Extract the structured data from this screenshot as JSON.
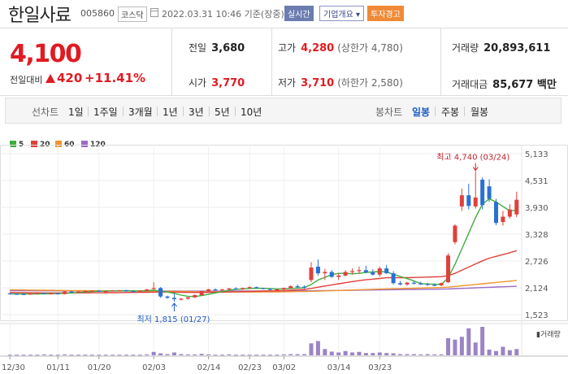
{
  "header": {
    "name": "한일사료",
    "code": "005860",
    "market": "코스닥",
    "time": "2022.03.31 10:46 기준(장중)",
    "badge_realtime": "실시간",
    "badge_company": "기업개요 ▾",
    "badge_warning": "투자경고"
  },
  "summary": {
    "price": "4,100",
    "change_label": "전일대비",
    "change_value": "420",
    "change_pct": "+11.41%",
    "prev_label": "전일",
    "prev_value": "3,680",
    "open_label": "시가",
    "open_value": "3,770",
    "high_label": "고가",
    "high_value": "4,280",
    "high_sub": "(상한가 4,780)",
    "low_label": "저가",
    "low_value": "3,710",
    "low_sub": "(하한가 2,580)",
    "vol_label": "거래량",
    "vol_value": "20,893,611",
    "amt_label": "거래대금",
    "amt_value": "85,677 백만"
  },
  "tabs": {
    "line_label": "선차트",
    "line_tabs": [
      "1일",
      "1주일",
      "3개월",
      "1년",
      "3년",
      "5년",
      "10년"
    ],
    "candle_label": "봉차트",
    "candle_tabs": [
      "일봉",
      "주봉",
      "월봉"
    ],
    "active_candle": "일봉"
  },
  "legend": [
    {
      "label": "5",
      "color": "#3fae3f"
    },
    {
      "label": "20",
      "color": "#e0403a"
    },
    {
      "label": "60",
      "color": "#f0942c"
    },
    {
      "label": "120",
      "color": "#9b6ac8"
    }
  ],
  "colors": {
    "up": "#e0403a",
    "down": "#2a6fd6",
    "volume": "#9b84c4"
  },
  "chart_data": {
    "type": "candlestick",
    "yticks": [
      "5,133",
      "4,531",
      "3,930",
      "3,328",
      "2,726",
      "2,124",
      "1,523"
    ],
    "ylim": [
      1523,
      5133
    ],
    "xticks": [
      "12/30",
      "01/11",
      "01/20",
      "02/03",
      "02/14",
      "02/23",
      "03/02",
      "03/14",
      "03/23"
    ],
    "high_annotation": "최고 4,740 (03/24)",
    "low_annotation": "최저 1,815 (01/27)",
    "volume_label": "거래량",
    "candles": [
      [
        2000,
        2010,
        1975,
        1990
      ],
      [
        1990,
        2000,
        1970,
        1980
      ],
      [
        1985,
        2000,
        1965,
        1975
      ],
      [
        1980,
        2005,
        1970,
        1995
      ],
      [
        1995,
        2020,
        1980,
        2010
      ],
      [
        2010,
        2015,
        1985,
        1990
      ],
      [
        1990,
        2005,
        1975,
        2000
      ],
      [
        2000,
        2010,
        1980,
        1985
      ],
      [
        1985,
        2050,
        1975,
        2040
      ],
      [
        2040,
        2060,
        2010,
        2030
      ],
      [
        2030,
        2050,
        2015,
        2040
      ],
      [
        2040,
        2060,
        2025,
        2055
      ],
      [
        2055,
        2070,
        2040,
        2060
      ],
      [
        2060,
        2075,
        2035,
        2045
      ],
      [
        2045,
        2060,
        2030,
        2050
      ],
      [
        2050,
        2070,
        2040,
        2065
      ],
      [
        2065,
        2080,
        2050,
        2070
      ],
      [
        2070,
        2080,
        2040,
        2050
      ],
      [
        2050,
        2060,
        2030,
        2045
      ],
      [
        2045,
        2070,
        2040,
        2060
      ],
      [
        2060,
        2100,
        2050,
        2090
      ],
      [
        2100,
        2250,
        2080,
        2120
      ],
      [
        2120,
        2140,
        1900,
        1930
      ],
      [
        1930,
        1950,
        1880,
        1900
      ],
      [
        1900,
        2000,
        1815,
        1870
      ],
      [
        1870,
        1900,
        1840,
        1880
      ],
      [
        1880,
        1920,
        1860,
        1910
      ],
      [
        1910,
        1980,
        1900,
        1960
      ],
      [
        1960,
        2060,
        1950,
        2050
      ],
      [
        2050,
        2100,
        2030,
        2090
      ],
      [
        2090,
        2110,
        2060,
        2080
      ],
      [
        2080,
        2100,
        2060,
        2090
      ],
      [
        2090,
        2120,
        2070,
        2110
      ],
      [
        2110,
        2140,
        2090,
        2100
      ],
      [
        2100,
        2130,
        2080,
        2120
      ],
      [
        2120,
        2160,
        2100,
        2140
      ],
      [
        2140,
        2150,
        2110,
        2120
      ],
      [
        2120,
        2130,
        2090,
        2100
      ],
      [
        2100,
        2110,
        2070,
        2080
      ],
      [
        2080,
        2100,
        2060,
        2090
      ],
      [
        2090,
        2130,
        2070,
        2120
      ],
      [
        2120,
        2180,
        2100,
        2160
      ],
      [
        2160,
        2200,
        2120,
        2150
      ],
      [
        2150,
        2180,
        2100,
        2130
      ],
      [
        2300,
        2700,
        2250,
        2580
      ],
      [
        2600,
        2760,
        2400,
        2450
      ],
      [
        2450,
        2550,
        2300,
        2480
      ],
      [
        2480,
        2520,
        2350,
        2370
      ],
      [
        2370,
        2450,
        2300,
        2400
      ],
      [
        2400,
        2520,
        2380,
        2480
      ],
      [
        2480,
        2560,
        2420,
        2500
      ],
      [
        2500,
        2600,
        2440,
        2520
      ],
      [
        2520,
        2620,
        2450,
        2470
      ],
      [
        2470,
        2540,
        2400,
        2420
      ],
      [
        2420,
        2600,
        2380,
        2560
      ],
      [
        2560,
        2640,
        2440,
        2450
      ],
      [
        2450,
        2500,
        2200,
        2230
      ],
      [
        2230,
        2280,
        2180,
        2200
      ],
      [
        2200,
        2260,
        2170,
        2240
      ],
      [
        2240,
        2280,
        2200,
        2220
      ],
      [
        2220,
        2260,
        2190,
        2210
      ],
      [
        2210,
        2240,
        2170,
        2190
      ],
      [
        2190,
        2220,
        2160,
        2180
      ],
      [
        2180,
        2240,
        2160,
        2230
      ],
      [
        2250,
        2900,
        2230,
        2850
      ],
      [
        3150,
        3550,
        3100,
        3520
      ],
      [
        3950,
        4350,
        3850,
        4200
      ],
      [
        4200,
        4460,
        3880,
        3960
      ],
      [
        3950,
        4740,
        3900,
        4150
      ],
      [
        4550,
        4600,
        3880,
        3980
      ],
      [
        4400,
        4560,
        4050,
        4120
      ],
      [
        4050,
        4120,
        3530,
        3580
      ],
      [
        3600,
        3850,
        3520,
        3720
      ],
      [
        3720,
        4000,
        3680,
        3880
      ],
      [
        3770,
        4280,
        3710,
        4100
      ]
    ],
    "ma5": [
      1990,
      1988,
      1987,
      1986,
      1988,
      1990,
      1993,
      1995,
      2000,
      2010,
      2020,
      2030,
      2040,
      2050,
      2052,
      2055,
      2058,
      2060,
      2058,
      2056,
      2060,
      2070,
      2055,
      2030,
      2000,
      1960,
      1935,
      1930,
      1950,
      1980,
      2010,
      2040,
      2070,
      2090,
      2100,
      2110,
      2115,
      2112,
      2105,
      2100,
      2100,
      2110,
      2120,
      2130,
      2200,
      2300,
      2360,
      2420,
      2450,
      2450,
      2440,
      2450,
      2470,
      2480,
      2490,
      2480,
      2430,
      2380,
      2330,
      2280,
      2220,
      2210,
      2205,
      2200,
      2350,
      2650,
      3000,
      3350,
      3700,
      4000,
      4120,
      4050,
      3950,
      3850,
      3870
    ],
    "ma20": [
      2020,
      2018,
      2016,
      2014,
      2012,
      2010,
      2010,
      2009,
      2009,
      2010,
      2011,
      2012,
      2013,
      2014,
      2015,
      2016,
      2018,
      2019,
      2020,
      2022,
      2024,
      2028,
      2030,
      2030,
      2028,
      2025,
      2022,
      2020,
      2020,
      2022,
      2025,
      2028,
      2032,
      2035,
      2040,
      2045,
      2048,
      2052,
      2055,
      2058,
      2062,
      2070,
      2080,
      2088,
      2110,
      2140,
      2165,
      2190,
      2215,
      2240,
      2265,
      2285,
      2305,
      2320,
      2335,
      2350,
      2350,
      2350,
      2352,
      2356,
      2360,
      2365,
      2370,
      2374,
      2400,
      2450,
      2520,
      2590,
      2660,
      2730,
      2790,
      2830,
      2870,
      2910,
      2960
    ],
    "ma60": [
      2080,
      2078,
      2076,
      2074,
      2072,
      2070,
      2068,
      2066,
      2064,
      2062,
      2061,
      2060,
      2059,
      2058,
      2057,
      2056,
      2055,
      2054,
      2053,
      2052,
      2051,
      2050,
      2048,
      2046,
      2044,
      2042,
      2040,
      2038,
      2036,
      2035,
      2034,
      2033,
      2032,
      2031,
      2030,
      2030,
      2030,
      2031,
      2032,
      2034,
      2036,
      2038,
      2040,
      2042,
      2046,
      2050,
      2055,
      2060,
      2065,
      2070,
      2075,
      2080,
      2085,
      2090,
      2095,
      2100,
      2104,
      2108,
      2112,
      2116,
      2120,
      2124,
      2128,
      2132,
      2140,
      2155,
      2170,
      2185,
      2200,
      2215,
      2230,
      2245,
      2260,
      2275,
      2290
    ],
    "ma120": [
      2060,
      2060,
      2059,
      2059,
      2058,
      2058,
      2057,
      2057,
      2056,
      2056,
      2055,
      2055,
      2055,
      2054,
      2054,
      2054,
      2053,
      2053,
      2053,
      2052,
      2052,
      2052,
      2051,
      2051,
      2051,
      2050,
      2050,
      2050,
      2050,
      2050,
      2050,
      2050,
      2051,
      2051,
      2052,
      2052,
      2053,
      2053,
      2054,
      2054,
      2055,
      2055,
      2056,
      2057,
      2058,
      2060,
      2062,
      2064,
      2066,
      2068,
      2070,
      2072,
      2074,
      2076,
      2078,
      2080,
      2082,
      2084,
      2086,
      2088,
      2090,
      2092,
      2094,
      2096,
      2100,
      2106,
      2112,
      2118,
      2124,
      2130,
      2136,
      2142,
      2148,
      2154,
      2160
    ],
    "volume": [
      0.02,
      0.02,
      0.02,
      0.02,
      0.02,
      0.03,
      0.02,
      0.02,
      0.03,
      0.02,
      0.02,
      0.02,
      0.02,
      0.02,
      0.02,
      0.02,
      0.02,
      0.02,
      0.02,
      0.02,
      0.03,
      0.12,
      0.07,
      0.04,
      0.1,
      0.04,
      0.03,
      0.03,
      0.05,
      0.03,
      0.02,
      0.02,
      0.03,
      0.02,
      0.02,
      0.02,
      0.02,
      0.02,
      0.02,
      0.02,
      0.03,
      0.04,
      0.04,
      0.04,
      0.42,
      0.5,
      0.22,
      0.13,
      0.1,
      0.15,
      0.1,
      0.12,
      0.08,
      0.08,
      0.1,
      0.08,
      0.07,
      0.04,
      0.04,
      0.04,
      0.03,
      0.04,
      0.03,
      0.03,
      0.6,
      0.55,
      0.65,
      0.95,
      0.45,
      1.0,
      0.2,
      0.15,
      0.3,
      0.18,
      0.22
    ]
  }
}
